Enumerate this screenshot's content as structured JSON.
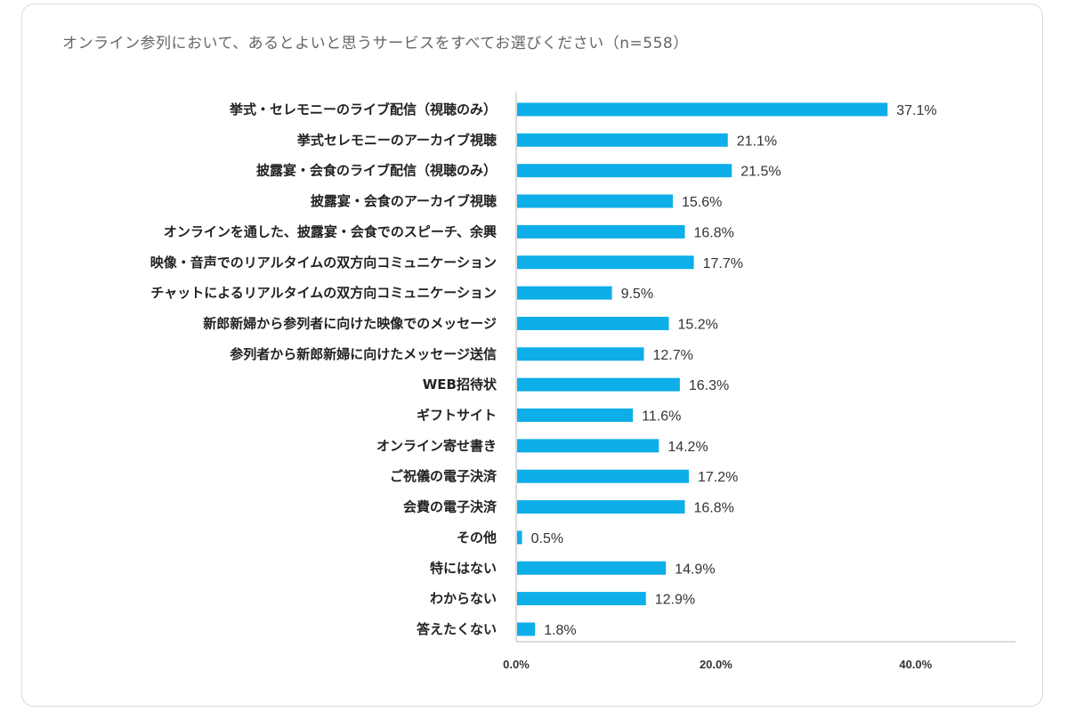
{
  "chart_data": {
    "type": "bar",
    "orientation": "horizontal",
    "title": "オンライン参列において、あるとよいと思うサービスをすべてお選びください（n=558）",
    "categories": [
      "挙式・セレモニーのライブ配信（視聴のみ）",
      "挙式セレモニーのアーカイブ視聴",
      "披露宴・会食のライブ配信（視聴のみ）",
      "披露宴・会食のアーカイブ視聴",
      "オンラインを通した、披露宴・会食でのスピーチ、余興",
      "映像・音声でのリアルタイムの双方向コミュニケーション",
      "チャットによるリアルタイムの双方向コミュニケーション",
      "新郎新婦から参列者に向けた映像でのメッセージ",
      "参列者から新郎新婦に向けたメッセージ送信",
      "WEB招待状",
      "ギフトサイト",
      "オンライン寄せ書き",
      "ご祝儀の電子決済",
      "会費の電子決済",
      "その他",
      "特にはない",
      "わからない",
      "答えたくない"
    ],
    "values": [
      37.1,
      21.1,
      21.5,
      15.6,
      16.8,
      17.7,
      9.5,
      15.2,
      12.7,
      16.3,
      11.6,
      14.2,
      17.2,
      16.8,
      0.5,
      14.9,
      12.9,
      1.8
    ],
    "value_labels": [
      "37.1%",
      "21.1%",
      "21.5%",
      "15.6%",
      "16.8%",
      "17.7%",
      "9.5%",
      "15.2%",
      "12.7%",
      "16.3%",
      "11.6%",
      "14.2%",
      "17.2%",
      "16.8%",
      "0.5%",
      "14.9%",
      "12.9%",
      "1.8%"
    ],
    "xlim": [
      0,
      50
    ],
    "ticks": [
      0,
      20,
      40
    ],
    "tick_labels": [
      "0.0%",
      "20.0%",
      "40.0%"
    ],
    "bar_color": "#0eaee8",
    "axis_color": "#b8b8b8",
    "grid": false,
    "legend": "none"
  }
}
